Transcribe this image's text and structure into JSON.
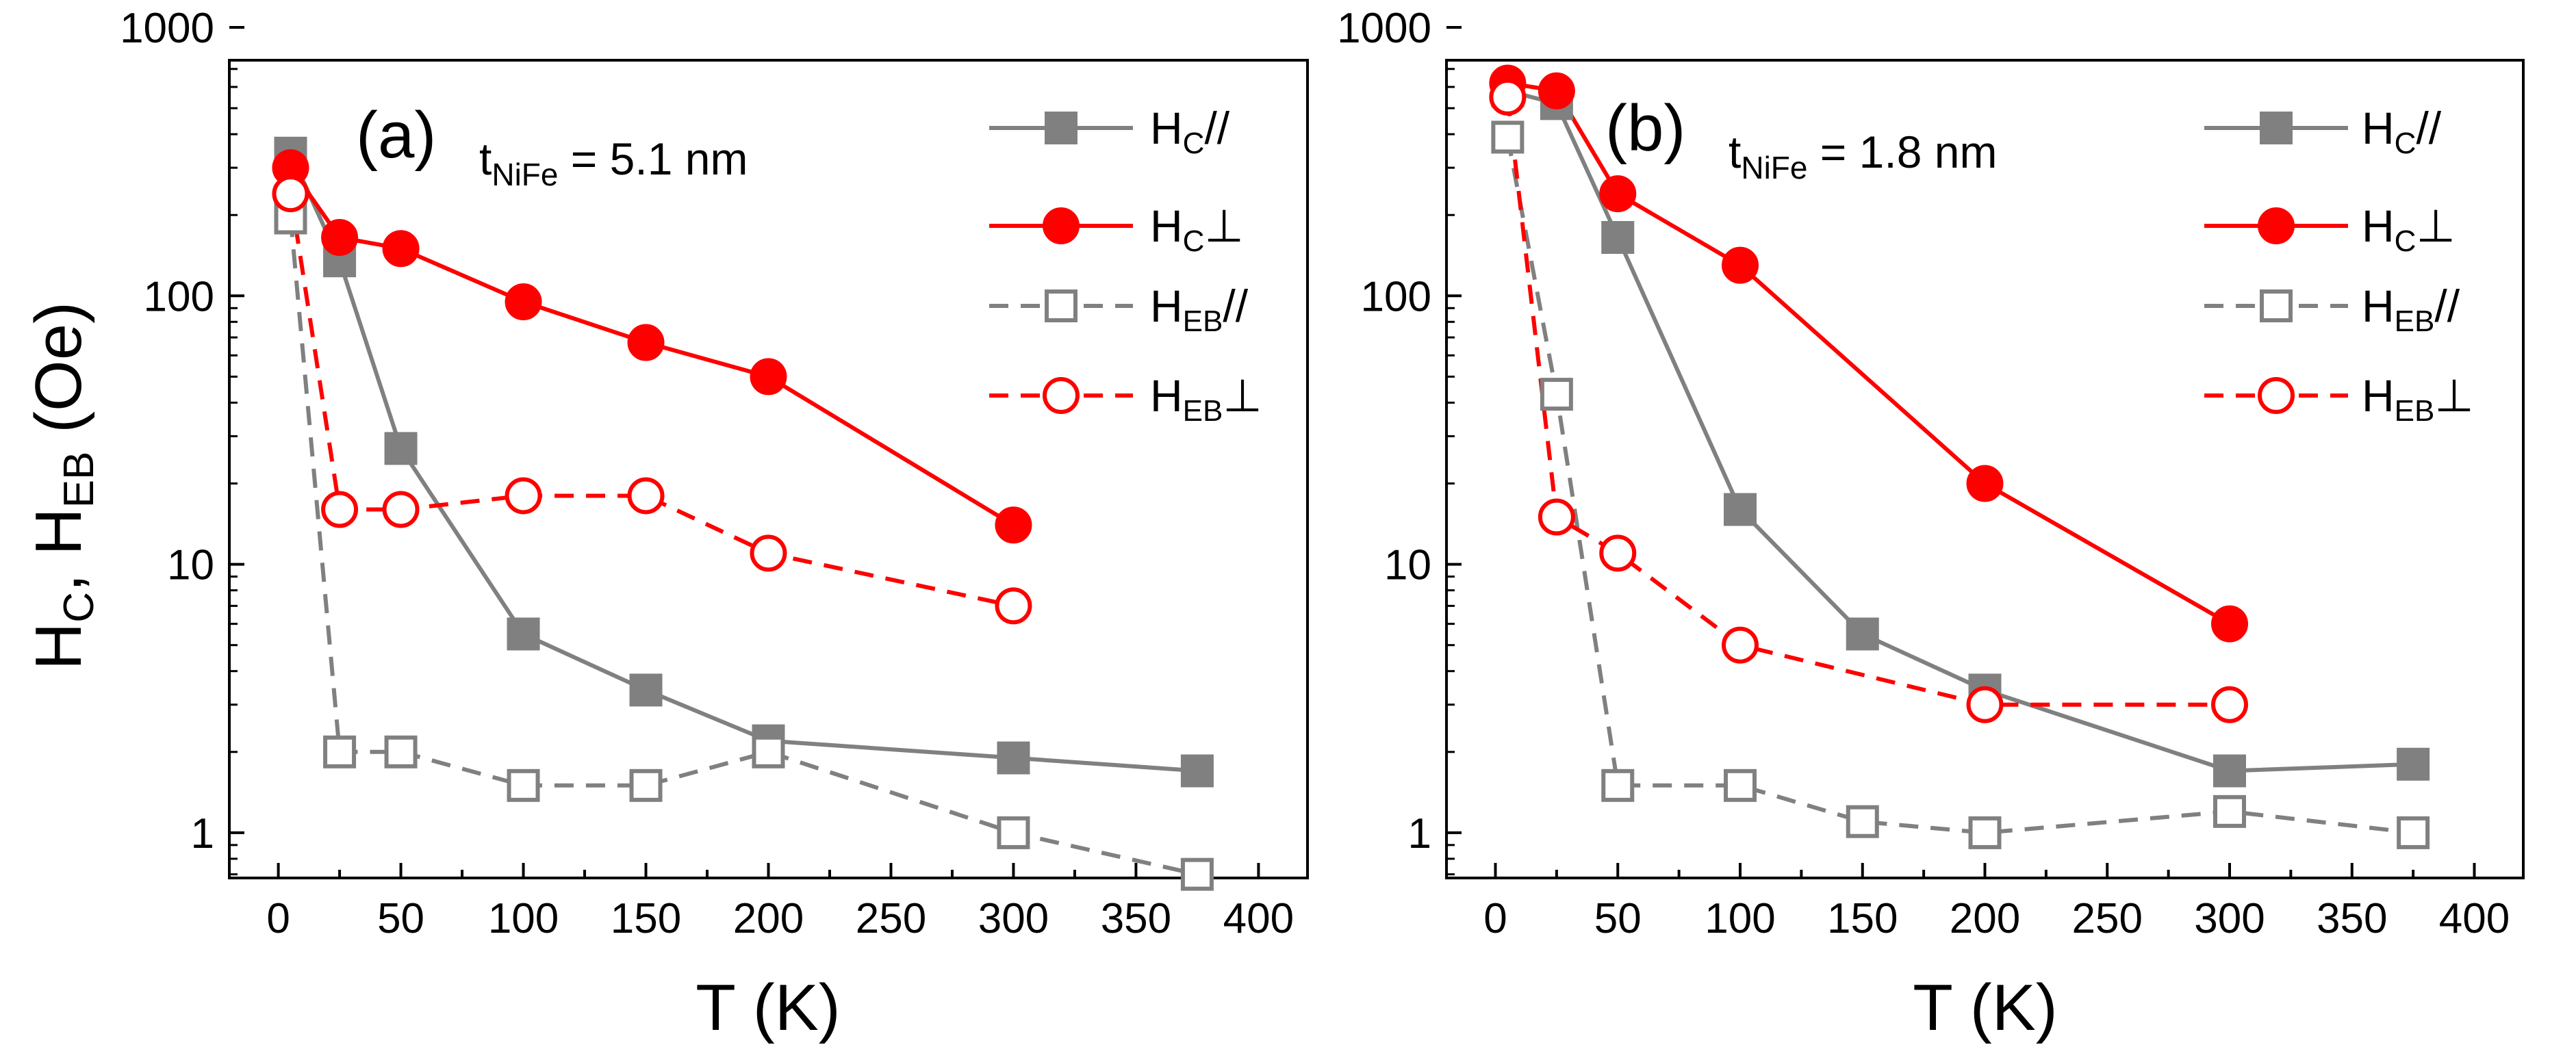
{
  "figure": {
    "y_axis_label": {
      "main1": "H",
      "sub1": "C",
      "sep": ", ",
      "main2": "H",
      "sub2": "EB",
      "unit": " (Oe)"
    }
  },
  "styles": {
    "gray": "#808080",
    "red": "#ff0000",
    "axis": "#000000"
  },
  "chart_data": [
    {
      "type": "line",
      "panel_label": "(a)",
      "annotation": {
        "main": "t",
        "sub": "NiFe",
        "rest": " = 5.1 nm"
      },
      "xlabel": "T (K)",
      "ylabel": "HC, HEB (Oe)",
      "xlim": [
        -20,
        420
      ],
      "ylim": [
        0.5,
        1000
      ],
      "yscale": "log",
      "xticks": [
        0,
        50,
        100,
        150,
        200,
        250,
        300,
        350,
        400
      ],
      "yticks": [
        1,
        10,
        100,
        1000
      ],
      "legend_position": "top-right",
      "series": [
        {
          "name": "HC//",
          "legend": {
            "main": "H",
            "sub": "C",
            "suffix": "//"
          },
          "color": "#808080",
          "marker": "square",
          "filled": true,
          "dashed": false,
          "x": [
            5,
            25,
            50,
            100,
            150,
            200,
            300,
            375
          ],
          "y": [
            340,
            135,
            27,
            5.5,
            3.4,
            2.2,
            1.9,
            1.7
          ]
        },
        {
          "name": "HC⊥",
          "legend": {
            "main": "H",
            "sub": "C",
            "suffix": "⊥"
          },
          "color": "#ff0000",
          "marker": "circle",
          "filled": true,
          "dashed": false,
          "x": [
            5,
            25,
            50,
            100,
            150,
            200,
            300
          ],
          "y": [
            300,
            165,
            150,
            95,
            67,
            50,
            14
          ]
        },
        {
          "name": "HEB//",
          "legend": {
            "main": "H",
            "sub": "EB",
            "suffix": "//"
          },
          "color": "#808080",
          "marker": "square",
          "filled": false,
          "dashed": true,
          "x": [
            5,
            25,
            50,
            100,
            150,
            200,
            300,
            375
          ],
          "y": [
            195,
            2.0,
            2.0,
            1.5,
            1.5,
            2.0,
            1.0,
            0.7
          ]
        },
        {
          "name": "HEB⊥",
          "legend": {
            "main": "H",
            "sub": "EB",
            "suffix": "⊥"
          },
          "color": "#ff0000",
          "marker": "circle",
          "filled": false,
          "dashed": true,
          "x": [
            5,
            25,
            50,
            100,
            150,
            200,
            300
          ],
          "y": [
            240,
            16,
            16,
            18,
            18,
            11,
            7
          ]
        }
      ]
    },
    {
      "type": "line",
      "panel_label": "(b)",
      "annotation": {
        "main": "t",
        "sub": "NiFe",
        "rest": " = 1.8 nm"
      },
      "xlabel": "T (K)",
      "ylabel": "",
      "xlim": [
        -20,
        420
      ],
      "ylim": [
        0.5,
        1000
      ],
      "yscale": "log",
      "xticks": [
        0,
        50,
        100,
        150,
        200,
        250,
        300,
        350,
        400
      ],
      "yticks": [
        1,
        10,
        100,
        1000
      ],
      "legend_position": "top-right",
      "series": [
        {
          "name": "HC//",
          "legend": {
            "main": "H",
            "sub": "C",
            "suffix": "//"
          },
          "color": "#808080",
          "marker": "square",
          "filled": true,
          "dashed": false,
          "x": [
            5,
            25,
            50,
            100,
            150,
            200,
            300,
            375
          ],
          "y": [
            580,
            520,
            165,
            16,
            5.5,
            3.4,
            1.7,
            1.8
          ]
        },
        {
          "name": "HC⊥",
          "legend": {
            "main": "H",
            "sub": "C",
            "suffix": "⊥"
          },
          "color": "#ff0000",
          "marker": "circle",
          "filled": true,
          "dashed": false,
          "x": [
            5,
            25,
            50,
            100,
            200,
            300
          ],
          "y": [
            620,
            580,
            240,
            130,
            20,
            6
          ]
        },
        {
          "name": "HEB//",
          "legend": {
            "main": "H",
            "sub": "EB",
            "suffix": "//"
          },
          "color": "#808080",
          "marker": "square",
          "filled": false,
          "dashed": true,
          "x": [
            5,
            25,
            50,
            100,
            150,
            200,
            300,
            375
          ],
          "y": [
            390,
            43,
            1.5,
            1.5,
            1.1,
            1.0,
            1.2,
            1.0
          ]
        },
        {
          "name": "HEB⊥",
          "legend": {
            "main": "H",
            "sub": "EB",
            "suffix": "⊥"
          },
          "color": "#ff0000",
          "marker": "circle",
          "filled": false,
          "dashed": true,
          "x": [
            5,
            25,
            50,
            100,
            200,
            300
          ],
          "y": [
            550,
            15,
            11,
            5,
            3,
            3
          ]
        }
      ]
    }
  ]
}
